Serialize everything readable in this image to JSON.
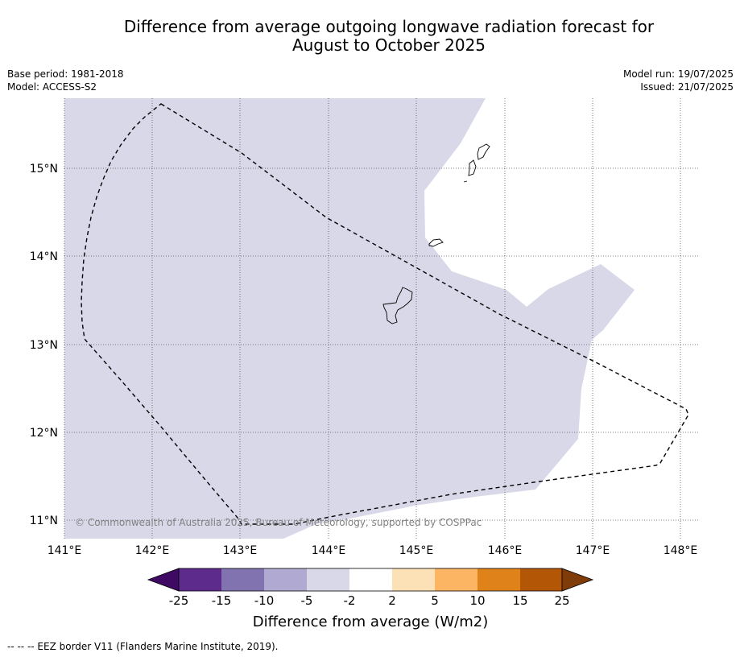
{
  "header": {
    "title_line1": "Difference from average outgoing longwave radiation forecast for",
    "title_line2": "August to October 2025",
    "base_period": "Base period: 1981-2018",
    "model": "Model: ACCESS-S2",
    "model_run": "Model run: 19/07/2025",
    "issued": "Issued: 21/07/2025"
  },
  "map": {
    "lon_ticks": [
      "141°E",
      "142°E",
      "143°E",
      "144°E",
      "145°E",
      "146°E",
      "147°E",
      "148°E"
    ],
    "lat_ticks": [
      "15°N",
      "14°N",
      "13°N",
      "12°N",
      "11°N"
    ],
    "copyright": "© Commonwealth of Australia 2025, Bureau of Meteorology, supported by COSPPac",
    "anomaly_class_shown": "-5 to -2",
    "colors": {
      "shading": "#d8d8e9",
      "background": "#ffffff",
      "grid": "#444444",
      "eez": "#000000"
    }
  },
  "colorbar": {
    "title": "Difference from average (W/m2)",
    "ticks": [
      "-25",
      "-15",
      "-10",
      "-5",
      "-2",
      "2",
      "5",
      "10",
      "15",
      "25"
    ],
    "colors": [
      "#3f0a63",
      "#5c2b8c",
      "#8173b0",
      "#b0a9d1",
      "#d8d8e9",
      "#ffffff",
      "#fde1b6",
      "#fcb562",
      "#e0821a",
      "#b35707",
      "#7f3b08"
    ]
  },
  "legend": {
    "eez_note": "--  --  -- EEZ border V11 (Flanders Marine Institute, 2019)."
  }
}
